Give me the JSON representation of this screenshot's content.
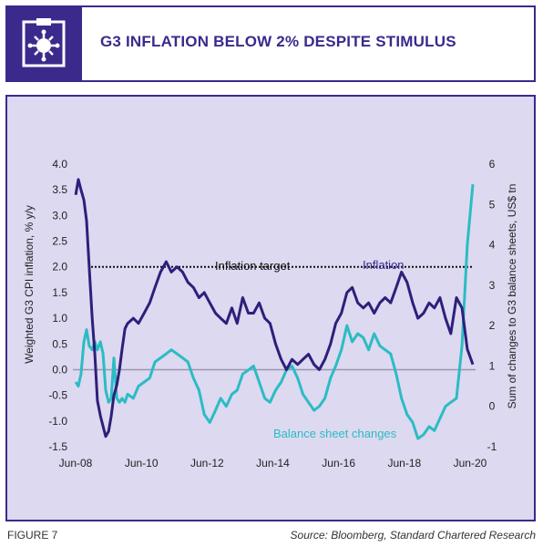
{
  "header": {
    "title": "G3 INFLATION BELOW 2% DESPITE STIMULUS",
    "icon": "virus-icon"
  },
  "footer": {
    "figure_label": "FIGURE 7",
    "source": "Source: Bloomberg, Standard Chartered Research"
  },
  "colors": {
    "brand": "#3b2a8c",
    "panel_bg": "#ddd9f0",
    "inflation": "#2e1f7a",
    "balance": "#2bbcc4",
    "zero_line": "#9a96b0"
  },
  "chart_data": {
    "type": "line",
    "x_tick_labels": [
      "Jun-08",
      "Jun-10",
      "Jun-12",
      "Jun-14",
      "Jun-16",
      "Jun-18",
      "Jun-20"
    ],
    "x_range": [
      "2008-05",
      "2020-08"
    ],
    "ylabel_left": "Weighted G3 CPI inflation, % y/y",
    "ylabel_right": "Sum of changes to G3 balance sheets, US$ tn",
    "ylim_left": [
      -1.5,
      4.0
    ],
    "ylim_right": [
      -1,
      6
    ],
    "left_ticks": [
      "4.0",
      "3.5",
      "3.0",
      "2.5",
      "2.0",
      "1.5",
      "1.0",
      "0.5",
      "0.0",
      "-0.5",
      "-1.0",
      "-1.5"
    ],
    "right_ticks": [
      "6",
      "5",
      "4",
      "3",
      "2",
      "1",
      "0",
      "-1"
    ],
    "reference_line": {
      "label": "Inflation target",
      "value": 2.0,
      "axis": "left"
    },
    "series": [
      {
        "name": "Inflation",
        "axis": "left",
        "x": [
          2008.42,
          2008.5,
          2008.58,
          2008.67,
          2008.75,
          2008.83,
          2008.92,
          2009.0,
          2009.08,
          2009.17,
          2009.25,
          2009.33,
          2009.42,
          2009.5,
          2009.58,
          2009.67,
          2009.75,
          2009.83,
          2009.92,
          2010.0,
          2010.17,
          2010.33,
          2010.5,
          2010.67,
          2010.83,
          2011.0,
          2011.17,
          2011.33,
          2011.5,
          2011.67,
          2011.83,
          2012.0,
          2012.17,
          2012.33,
          2012.5,
          2012.67,
          2012.83,
          2013.0,
          2013.17,
          2013.33,
          2013.5,
          2013.67,
          2013.83,
          2014.0,
          2014.17,
          2014.33,
          2014.5,
          2014.67,
          2014.83,
          2015.0,
          2015.17,
          2015.33,
          2015.5,
          2015.67,
          2015.83,
          2016.0,
          2016.17,
          2016.33,
          2016.5,
          2016.67,
          2016.83,
          2017.0,
          2017.17,
          2017.33,
          2017.5,
          2017.67,
          2017.83,
          2018.0,
          2018.17,
          2018.33,
          2018.5,
          2018.67,
          2018.83,
          2019.0,
          2019.17,
          2019.33,
          2019.5,
          2019.67,
          2019.83,
          2020.0,
          2020.17,
          2020.33,
          2020.5
        ],
        "values": [
          3.4,
          3.7,
          3.5,
          3.3,
          2.9,
          2.0,
          1.0,
          0.3,
          -0.6,
          -0.9,
          -1.1,
          -1.3,
          -1.2,
          -0.9,
          -0.5,
          -0.3,
          0.0,
          0.4,
          0.8,
          0.9,
          1.0,
          0.9,
          1.1,
          1.3,
          1.6,
          1.9,
          2.1,
          1.9,
          2.0,
          1.9,
          1.7,
          1.6,
          1.4,
          1.5,
          1.3,
          1.1,
          1.0,
          0.9,
          1.2,
          0.9,
          1.4,
          1.1,
          1.1,
          1.3,
          1.0,
          0.9,
          0.5,
          0.2,
          0.0,
          0.2,
          0.1,
          0.2,
          0.3,
          0.1,
          0.0,
          0.2,
          0.5,
          0.9,
          1.1,
          1.5,
          1.6,
          1.3,
          1.2,
          1.3,
          1.1,
          1.3,
          1.4,
          1.3,
          1.6,
          1.9,
          1.7,
          1.3,
          1.0,
          1.1,
          1.3,
          1.2,
          1.4,
          1.0,
          0.7,
          1.4,
          1.2,
          0.4,
          0.1
        ]
      },
      {
        "name": "Balance sheet changes",
        "axis": "right",
        "x": [
          2008.42,
          2008.5,
          2008.58,
          2008.67,
          2008.75,
          2008.83,
          2008.92,
          2009.0,
          2009.08,
          2009.17,
          2009.25,
          2009.33,
          2009.42,
          2009.5,
          2009.58,
          2009.67,
          2009.75,
          2009.83,
          2009.92,
          2010.0,
          2010.17,
          2010.33,
          2010.5,
          2010.67,
          2010.83,
          2011.0,
          2011.17,
          2011.33,
          2011.5,
          2011.67,
          2011.83,
          2012.0,
          2012.17,
          2012.33,
          2012.5,
          2012.67,
          2012.83,
          2013.0,
          2013.17,
          2013.33,
          2013.5,
          2013.67,
          2013.83,
          2014.0,
          2014.17,
          2014.33,
          2014.5,
          2014.67,
          2014.83,
          2015.0,
          2015.17,
          2015.33,
          2015.5,
          2015.67,
          2015.83,
          2016.0,
          2016.17,
          2016.33,
          2016.5,
          2016.67,
          2016.83,
          2017.0,
          2017.17,
          2017.33,
          2017.5,
          2017.67,
          2017.83,
          2018.0,
          2018.17,
          2018.33,
          2018.5,
          2018.67,
          2018.83,
          2019.0,
          2019.17,
          2019.33,
          2019.5,
          2019.67,
          2019.83,
          2020.0,
          2020.17,
          2020.33,
          2020.5
        ],
        "values": [
          0.6,
          0.5,
          0.8,
          1.6,
          1.9,
          1.5,
          1.4,
          1.6,
          1.4,
          1.6,
          1.3,
          0.4,
          0.1,
          0.2,
          1.2,
          0.2,
          0.1,
          0.2,
          0.1,
          0.3,
          0.2,
          0.5,
          0.6,
          0.7,
          1.1,
          1.2,
          1.3,
          1.4,
          1.3,
          1.2,
          1.1,
          0.7,
          0.4,
          -0.2,
          -0.4,
          -0.1,
          0.2,
          0.0,
          0.3,
          0.4,
          0.8,
          0.9,
          1.0,
          0.6,
          0.2,
          0.1,
          0.4,
          0.6,
          0.9,
          1.0,
          0.7,
          0.3,
          0.1,
          -0.1,
          0.0,
          0.2,
          0.7,
          1.0,
          1.4,
          2.0,
          1.6,
          1.8,
          1.7,
          1.4,
          1.8,
          1.5,
          1.4,
          1.3,
          0.8,
          0.2,
          -0.2,
          -0.4,
          -0.8,
          -0.7,
          -0.5,
          -0.6,
          -0.3,
          0.0,
          0.1,
          0.2,
          1.5,
          4.0,
          5.5
        ]
      }
    ],
    "annotations": [
      "Inflation target",
      "Inflation",
      "Balance sheet changes"
    ],
    "grid": false
  }
}
